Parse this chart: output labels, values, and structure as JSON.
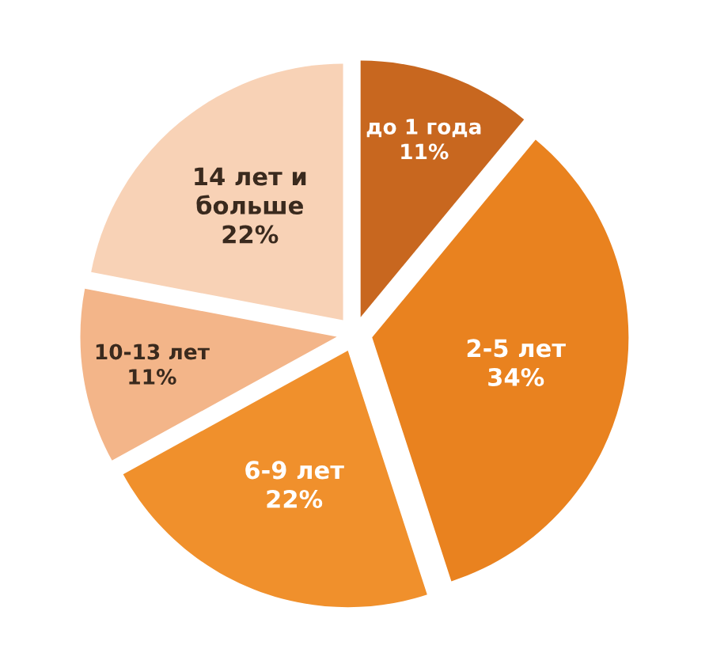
{
  "chart_data": {
    "type": "pie",
    "categories": [
      "до 1 года",
      "2-5 лет",
      "6-9 лет",
      "10-13 лет",
      "14 лет и больше"
    ],
    "values": [
      11,
      34,
      22,
      11,
      22
    ],
    "colors": [
      "#c8671f",
      "#e9821f",
      "#f0902c",
      "#f3b589",
      "#f8d2b6"
    ],
    "value_labels": [
      "11%",
      "34%",
      "22%",
      "11%",
      "22%"
    ]
  }
}
